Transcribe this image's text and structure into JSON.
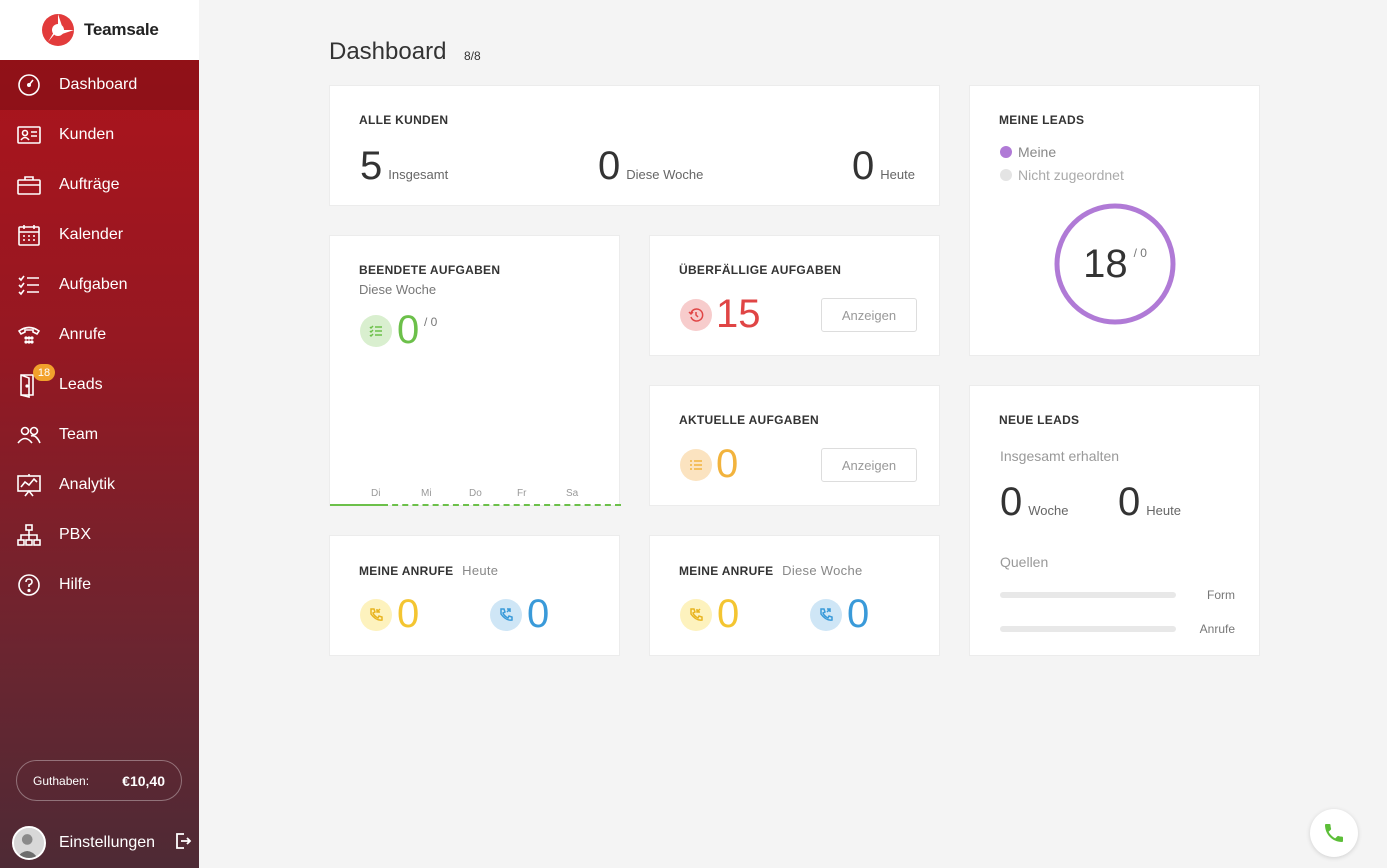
{
  "app": {
    "name": "Teamsale"
  },
  "sidebar": {
    "items": [
      {
        "label": "Dashboard",
        "icon": "dashboard-gauge-icon",
        "active": true
      },
      {
        "label": "Kunden",
        "icon": "contact-card-icon"
      },
      {
        "label": "Aufträge",
        "icon": "briefcase-icon"
      },
      {
        "label": "Kalender",
        "icon": "calendar-icon"
      },
      {
        "label": "Aufgaben",
        "icon": "checklist-icon"
      },
      {
        "label": "Anrufe",
        "icon": "telephone-icon"
      },
      {
        "label": "Leads",
        "icon": "door-icon",
        "badge": "18"
      },
      {
        "label": "Team",
        "icon": "people-icon"
      },
      {
        "label": "Analytik",
        "icon": "analytics-board-icon"
      },
      {
        "label": "PBX",
        "icon": "hierarchy-icon"
      },
      {
        "label": "Hilfe",
        "icon": "help-icon"
      }
    ],
    "balance_label": "Guthaben:",
    "balance_value": "€10,40",
    "settings_label": "Einstellungen"
  },
  "header": {
    "title": "Dashboard",
    "count": "8/8"
  },
  "alle_kunden": {
    "title": "ALLE KUNDEN",
    "total": "5",
    "total_label": "Insgesamt",
    "week": "0",
    "week_label": "Diese Woche",
    "today": "0",
    "today_label": "Heute"
  },
  "meine_leads": {
    "title": "MEINE LEADS",
    "legend_mine": "Meine",
    "legend_unassigned": "Nicht zugeordnet",
    "value": "18",
    "secondary": "/ 0",
    "mine_color": "#b07ad6",
    "unassigned_color": "#e4e4e4"
  },
  "beendete": {
    "title": "BEENDETE AUFGABEN",
    "subtitle": "Diese Woche",
    "value": "0",
    "secondary": "/ 0",
    "days": [
      "Di",
      "Mi",
      "Do",
      "Fr",
      "Sa"
    ],
    "color": "#6cc04a"
  },
  "ueberfaellige": {
    "title": "ÜBERFÄLLIGE AUFGABEN",
    "value": "15",
    "button": "Anzeigen",
    "color": "#e04545"
  },
  "aktuelle": {
    "title": "AKTUELLE AUFGABEN",
    "value": "0",
    "button": "Anzeigen",
    "color": "#f2b33d"
  },
  "neue_leads": {
    "title": "NEUE LEADS",
    "subtitle": "Insgesamt erhalten",
    "week": "0",
    "week_label": "Woche",
    "today": "0",
    "today_label": "Heute",
    "sources_label": "Quellen",
    "sources": [
      {
        "label": "Form",
        "value": 0
      },
      {
        "label": "Anrufe",
        "value": 0
      }
    ]
  },
  "anrufe_heute": {
    "title": "MEINE ANRUFE",
    "period": "Heute",
    "incoming": "0",
    "outgoing": "0"
  },
  "anrufe_woche": {
    "title": "MEINE ANRUFE",
    "period": "Diese Woche",
    "incoming": "0",
    "outgoing": "0"
  },
  "colors": {
    "incoming": "#f4c531",
    "outgoing": "#3a9ad9"
  }
}
